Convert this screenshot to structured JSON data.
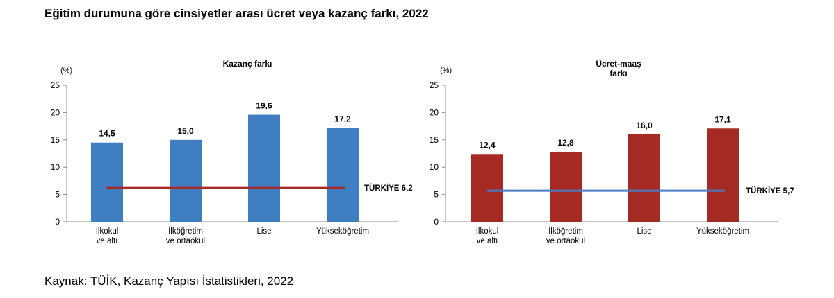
{
  "page": {
    "title": "Eğitim durumuna göre cinsiyetler arası ücret veya kazanç farkı, 2022",
    "source": "Kaynak: TÜİK, Kazanç Yapısı İstatistikleri, 2022"
  },
  "chart_data": [
    {
      "type": "bar",
      "title": [
        "Kazanç farkı"
      ],
      "unit": "(%)",
      "categories": [
        [
          "İlkokul",
          "ve altı"
        ],
        [
          "İlköğretim",
          "ve ortaokul"
        ],
        [
          "Lise"
        ],
        [
          "Yükseköğretim"
        ]
      ],
      "values": [
        14.5,
        15.0,
        19.6,
        17.2
      ],
      "value_labels": [
        "14,5",
        "15,0",
        "19,6",
        "17,2"
      ],
      "ylim": [
        0,
        25
      ],
      "yticks": [
        0,
        5,
        10,
        15,
        20,
        25
      ],
      "bar_color": "#3f7fc1",
      "reference_line": {
        "label": "TÜRKİYE 6,2",
        "value": 6.2,
        "color": "#a52a2a"
      },
      "grid": false
    },
    {
      "type": "bar",
      "title": [
        "Ücret-maaş",
        "farkı"
      ],
      "unit": "(%)",
      "categories": [
        [
          "İlkokul",
          "ve altı"
        ],
        [
          "İlköğretim",
          "ve ortaokul"
        ],
        [
          "Lise"
        ],
        [
          "Yükseköğretim"
        ]
      ],
      "values": [
        12.4,
        12.8,
        16.0,
        17.1
      ],
      "value_labels": [
        "12,4",
        "12,8",
        "16,0",
        "17,1"
      ],
      "ylim": [
        0,
        25
      ],
      "yticks": [
        0,
        5,
        10,
        15,
        20,
        25
      ],
      "bar_color": "#a52a23",
      "reference_line": {
        "label": "TÜRKİYE 5,7",
        "value": 5.7,
        "color": "#4a7cc4"
      },
      "grid": false
    }
  ]
}
